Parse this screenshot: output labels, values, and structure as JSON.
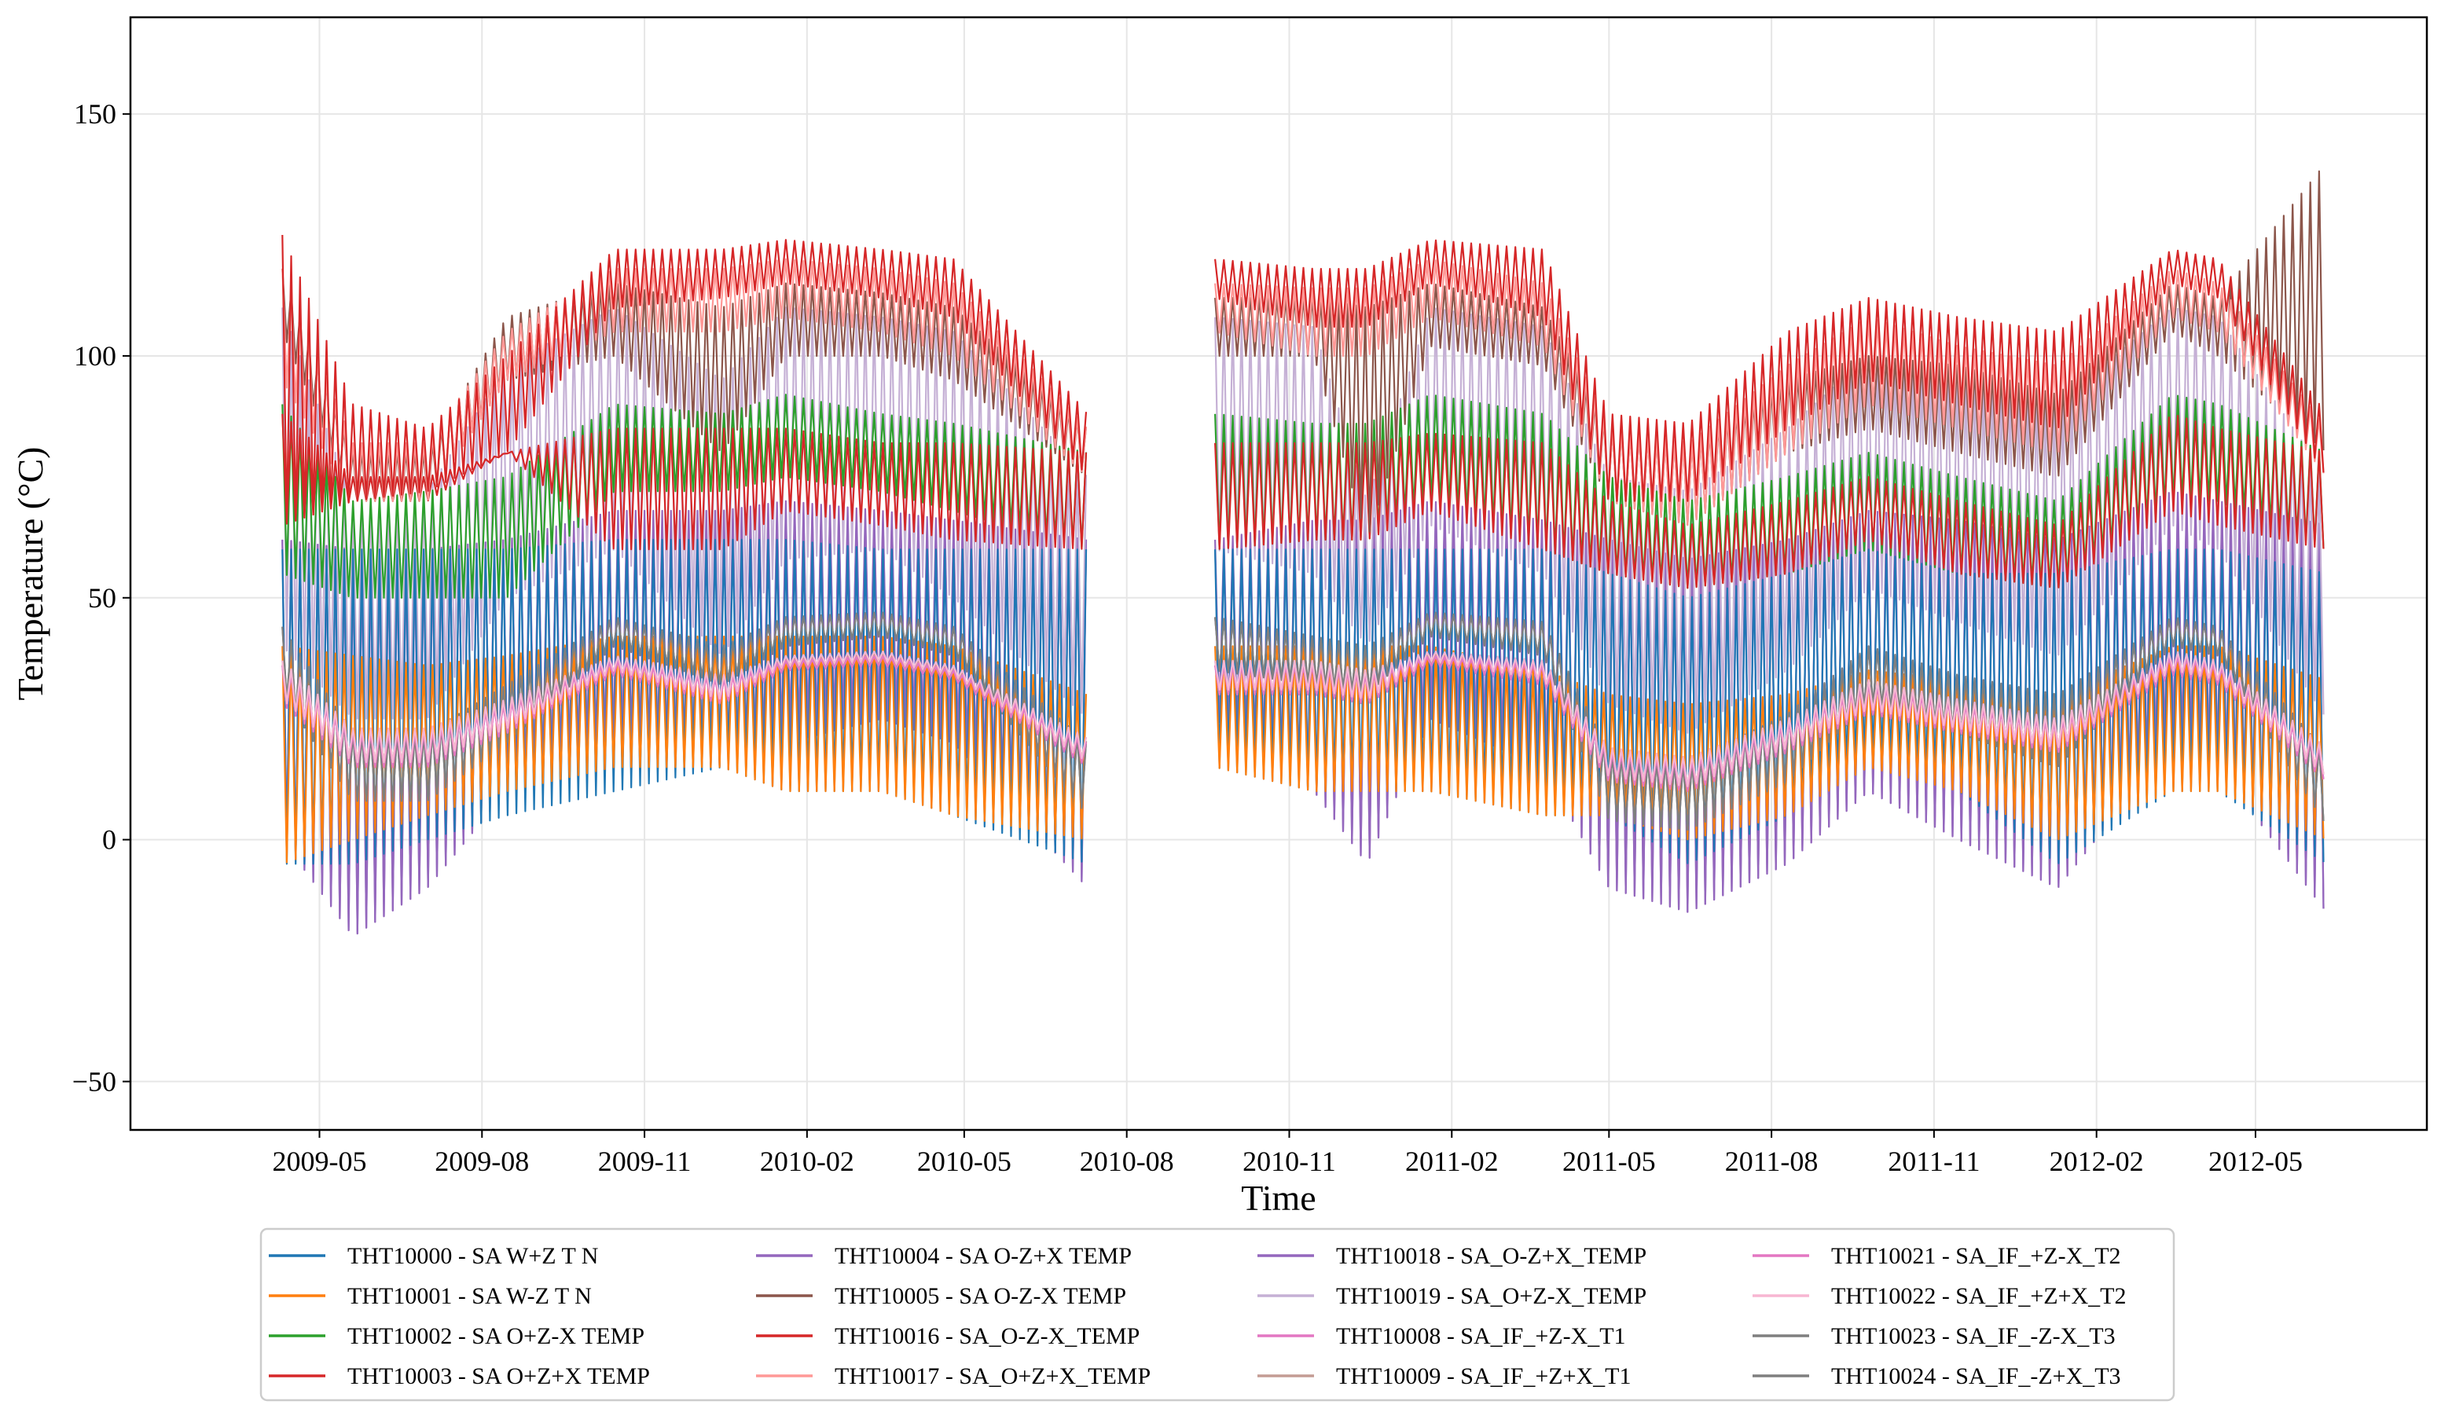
{
  "chart_data": {
    "type": "line",
    "title": "",
    "xlabel": "Time",
    "ylabel": "Temperature (°C)",
    "ylim": [
      -60,
      170
    ],
    "xlim": [
      "2009-01-14",
      "2012-08-06"
    ],
    "grid": true,
    "legend_position": "bottom-center",
    "y_ticks": [
      -50,
      0,
      50,
      100,
      150
    ],
    "y_tick_labels": [
      "−50",
      "0",
      "50",
      "100",
      "150"
    ],
    "x_ticks": [
      {
        "date": "2009-05-01",
        "label": "2009-05"
      },
      {
        "date": "2009-08-01",
        "label": "2009-08"
      },
      {
        "date": "2009-11-01",
        "label": "2009-11"
      },
      {
        "date": "2010-02-01",
        "label": "2010-02"
      },
      {
        "date": "2010-05-01",
        "label": "2010-05"
      },
      {
        "date": "2010-08-01",
        "label": "2010-08"
      },
      {
        "date": "2010-11-01",
        "label": "2010-11"
      },
      {
        "date": "2011-02-01",
        "label": "2011-02"
      },
      {
        "date": "2011-05-01",
        "label": "2011-05"
      },
      {
        "date": "2011-08-01",
        "label": "2011-08"
      },
      {
        "date": "2011-11-01",
        "label": "2011-11"
      },
      {
        "date": "2012-02-01",
        "label": "2012-02"
      },
      {
        "date": "2012-05-01",
        "label": "2012-05"
      }
    ],
    "segments": [
      {
        "start": "2009-04-10",
        "end": "2010-07-10"
      },
      {
        "start": "2010-09-20",
        "end": "2012-06-10"
      }
    ],
    "envelope_dates": [
      "2009-04-10",
      "2009-05-20",
      "2009-07-01",
      "2009-08-15",
      "2009-10-15",
      "2009-12-15",
      "2010-01-20",
      "2010-03-15",
      "2010-04-25",
      "2010-07-10",
      "2010-09-20",
      "2010-11-15",
      "2010-12-15",
      "2011-01-20",
      "2011-03-25",
      "2011-05-01",
      "2011-06-15",
      "2011-08-10",
      "2011-09-25",
      "2011-11-15",
      "2012-01-10",
      "2012-03-15",
      "2012-04-10",
      "2012-06-10"
    ],
    "series": [
      {
        "name": "THT10000 - SA W+Z T N",
        "color": "#1f77b4",
        "low": [
          -5,
          -5,
          0,
          5,
          10,
          15,
          10,
          10,
          5,
          -5,
          15,
          10,
          10,
          10,
          5,
          5,
          -5,
          5,
          15,
          10,
          -5,
          10,
          10,
          -5
        ],
        "high": [
          60,
          60,
          60,
          60,
          62,
          62,
          62,
          60,
          60,
          60,
          60,
          60,
          60,
          60,
          60,
          55,
          50,
          55,
          60,
          55,
          55,
          60,
          60,
          55
        ]
      },
      {
        "name": "THT10001 - SA W-Z T N",
        "color": "#ff7f0e",
        "low": [
          -5,
          0,
          5,
          10,
          15,
          15,
          10,
          10,
          5,
          0,
          15,
          10,
          10,
          10,
          5,
          5,
          0,
          5,
          15,
          10,
          0,
          10,
          10,
          0
        ],
        "high": [
          40,
          38,
          36,
          38,
          42,
          42,
          42,
          42,
          40,
          30,
          40,
          40,
          40,
          40,
          35,
          30,
          28,
          30,
          35,
          33,
          30,
          40,
          40,
          33
        ]
      },
      {
        "name": "THT10002 - SA O+Z-X TEMP",
        "color": "#2ca02c",
        "low": [
          55,
          50,
          50,
          50,
          72,
          72,
          75,
          72,
          68,
          60,
          60,
          62,
          62,
          70,
          60,
          55,
          52,
          55,
          60,
          55,
          52,
          70,
          70,
          60
        ],
        "high": [
          90,
          70,
          72,
          75,
          90,
          88,
          92,
          88,
          86,
          80,
          88,
          86,
          86,
          92,
          88,
          75,
          70,
          75,
          80,
          75,
          70,
          92,
          90,
          80
        ]
      },
      {
        "name": "THT10003 - SA O+Z+X TEMP",
        "color": "#d62728",
        "low": [
          65,
          70,
          72,
          80,
          110,
          112,
          115,
          112,
          108,
          75,
          112,
          106,
          106,
          115,
          108,
          70,
          70,
          85,
          95,
          90,
          85,
          115,
          112,
          75
        ],
        "high": [
          125,
          90,
          85,
          100,
          122,
          122,
          124,
          122,
          120,
          88,
          120,
          118,
          118,
          124,
          122,
          88,
          86,
          105,
          112,
          108,
          105,
          122,
          120,
          88
        ]
      },
      {
        "name": "THT10004 - SA O-Z+X TEMP",
        "color": "#9467bd",
        "low": [
          0,
          -20,
          -10,
          10,
          20,
          15,
          20,
          25,
          20,
          -10,
          25,
          10,
          -5,
          25,
          15,
          -10,
          -15,
          -5,
          10,
          0,
          -10,
          20,
          15,
          -15
        ],
        "high": [
          62,
          60,
          60,
          62,
          68,
          68,
          70,
          68,
          66,
          62,
          62,
          66,
          66,
          70,
          66,
          62,
          58,
          62,
          68,
          66,
          62,
          72,
          70,
          65
        ]
      },
      {
        "name": "THT10005 - SA O-Z-X TEMP",
        "color": "#8c564b",
        "low": [
          105,
          70,
          70,
          95,
          100,
          80,
          100,
          100,
          95,
          75,
          100,
          100,
          62,
          102,
          98,
          70,
          65,
          80,
          85,
          80,
          75,
          105,
          100,
          80
        ],
        "high": [
          118,
          80,
          80,
          108,
          115,
          110,
          115,
          113,
          110,
          85,
          112,
          112,
          110,
          115,
          110,
          85,
          82,
          95,
          100,
          98,
          92,
          115,
          112,
          140
        ]
      },
      {
        "name": "THT10016 - SA_O-Z-X_TEMP",
        "color": "#d62728",
        "low": [
          65,
          70,
          70,
          80,
          60,
          60,
          68,
          65,
          62,
          60,
          60,
          62,
          62,
          68,
          60,
          55,
          52,
          55,
          62,
          55,
          52,
          68,
          65,
          60
        ],
        "high": [
          88,
          75,
          75,
          80,
          85,
          85,
          85,
          82,
          82,
          80,
          82,
          82,
          82,
          84,
          82,
          70,
          65,
          70,
          75,
          70,
          65,
          88,
          85,
          80
        ]
      },
      {
        "name": "THT10017 - SA_O+Z+X_TEMP",
        "color": "#ff9896",
        "low": [
          95,
          70,
          70,
          95,
          105,
          105,
          108,
          105,
          100,
          75,
          105,
          100,
          100,
          108,
          102,
          70,
          65,
          80,
          90,
          85,
          80,
          108,
          105,
          75
        ],
        "high": [
          118,
          82,
          82,
          105,
          118,
          118,
          120,
          118,
          115,
          85,
          115,
          114,
          114,
          120,
          115,
          85,
          82,
          98,
          108,
          102,
          98,
          118,
          115,
          85
        ]
      },
      {
        "name": "THT10018 - SA_O-Z+X_TEMP",
        "color": "#9467bd",
        "low": [
          0,
          -20,
          -10,
          10,
          20,
          15,
          20,
          25,
          20,
          -10,
          25,
          10,
          -5,
          25,
          15,
          -10,
          -15,
          -5,
          10,
          0,
          -10,
          20,
          15,
          -15
        ],
        "high": [
          62,
          60,
          60,
          62,
          66,
          66,
          68,
          66,
          64,
          60,
          60,
          64,
          64,
          68,
          64,
          60,
          56,
          60,
          66,
          64,
          60,
          70,
          68,
          62
        ]
      },
      {
        "name": "THT10019 - SA_O+Z-X_TEMP",
        "color": "#c5b0d5",
        "low": [
          40,
          25,
          25,
          50,
          60,
          38,
          58,
          60,
          50,
          25,
          60,
          55,
          40,
          65,
          55,
          28,
          22,
          35,
          52,
          45,
          38,
          65,
          60,
          25
        ],
        "high": [
          110,
          70,
          72,
          98,
          110,
          95,
          110,
          108,
          105,
          75,
          108,
          106,
          70,
          110,
          106,
          75,
          72,
          85,
          100,
          95,
          90,
          110,
          108,
          75
        ]
      },
      {
        "name": "THT10008 - SA_IF_+Z-X_T1",
        "color": "#e377c2",
        "low": [
          28,
          15,
          15,
          22,
          34,
          28,
          35,
          36,
          33,
          15,
          30,
          30,
          28,
          36,
          32,
          12,
          10,
          18,
          26,
          22,
          18,
          34,
          32,
          12
        ],
        "high": [
          36,
          22,
          22,
          28,
          37,
          33,
          37,
          38,
          35,
          20,
          36,
          36,
          34,
          38,
          36,
          18,
          16,
          24,
          32,
          28,
          24,
          38,
          36,
          18
        ]
      },
      {
        "name": "THT10009 - SA_IF_+Z+X_T1",
        "color": "#c49c94",
        "low": [
          28,
          16,
          16,
          23,
          34,
          29,
          35,
          36,
          33,
          16,
          30,
          30,
          28,
          36,
          32,
          13,
          11,
          19,
          27,
          23,
          19,
          34,
          32,
          13
        ],
        "high": [
          37,
          23,
          23,
          29,
          38,
          34,
          38,
          39,
          36,
          21,
          37,
          37,
          35,
          39,
          37,
          19,
          17,
          25,
          33,
          29,
          25,
          39,
          37,
          19
        ]
      },
      {
        "name": "THT10021 - SA_IF_+Z-X_T2",
        "color": "#e377c2",
        "low": [
          28,
          15,
          15,
          22,
          34,
          28,
          35,
          36,
          33,
          15,
          30,
          30,
          28,
          36,
          32,
          12,
          10,
          18,
          26,
          22,
          18,
          34,
          32,
          12
        ],
        "high": [
          36,
          22,
          22,
          28,
          37,
          33,
          37,
          38,
          35,
          20,
          36,
          36,
          34,
          38,
          36,
          18,
          16,
          24,
          32,
          28,
          24,
          38,
          36,
          18
        ]
      },
      {
        "name": "THT10022 - SA_IF_+Z+X_T2",
        "color": "#f7b6d2",
        "low": [
          29,
          16,
          16,
          23,
          35,
          29,
          36,
          37,
          34,
          16,
          31,
          31,
          29,
          37,
          33,
          13,
          11,
          19,
          27,
          23,
          19,
          35,
          33,
          13
        ],
        "high": [
          37,
          23,
          23,
          29,
          38,
          34,
          38,
          39,
          36,
          21,
          37,
          37,
          35,
          39,
          37,
          19,
          17,
          25,
          33,
          29,
          25,
          39,
          37,
          19
        ]
      },
      {
        "name": "THT10023 - SA_IF_-Z-X_T3",
        "color": "#7f7f7f",
        "low": [
          30,
          8,
          8,
          20,
          40,
          32,
          40,
          42,
          38,
          5,
          35,
          32,
          30,
          42,
          38,
          4,
          2,
          12,
          28,
          22,
          15,
          40,
          38,
          3
        ],
        "high": [
          44,
          22,
          22,
          32,
          46,
          40,
          46,
          47,
          44,
          20,
          46,
          42,
          40,
          47,
          45,
          18,
          16,
          26,
          40,
          34,
          30,
          46,
          44,
          18
        ]
      },
      {
        "name": "THT10024 - SA_IF_-Z+X_T3",
        "color": "#7f7f7f",
        "low": [
          30,
          8,
          8,
          20,
          40,
          32,
          40,
          42,
          38,
          5,
          35,
          32,
          30,
          42,
          38,
          4,
          2,
          12,
          28,
          22,
          15,
          40,
          38,
          3
        ],
        "high": [
          44,
          22,
          22,
          32,
          46,
          40,
          46,
          47,
          44,
          20,
          46,
          42,
          40,
          47,
          45,
          18,
          16,
          26,
          40,
          34,
          30,
          46,
          44,
          18
        ]
      }
    ],
    "draw_order": [
      "THT10004 - SA O-Z+X TEMP",
      "THT10018 - SA_O-Z+X_TEMP",
      "THT10019 - SA_O+Z-X_TEMP",
      "THT10002 - SA O+Z-X TEMP",
      "THT10016 - SA_O-Z-X_TEMP",
      "THT10005 - SA O-Z-X TEMP",
      "THT10017 - SA_O+Z+X_TEMP",
      "THT10003 - SA O+Z+X TEMP",
      "THT10000 - SA W+Z T N",
      "THT10001 - SA W-Z T N",
      "THT10023 - SA_IF_-Z-X_T3",
      "THT10024 - SA_IF_-Z+X_T3",
      "THT10008 - SA_IF_+Z-X_T1",
      "THT10009 - SA_IF_+Z+X_T1",
      "THT10021 - SA_IF_+Z-X_T2",
      "THT10022 - SA_IF_+Z+X_T2"
    ]
  }
}
